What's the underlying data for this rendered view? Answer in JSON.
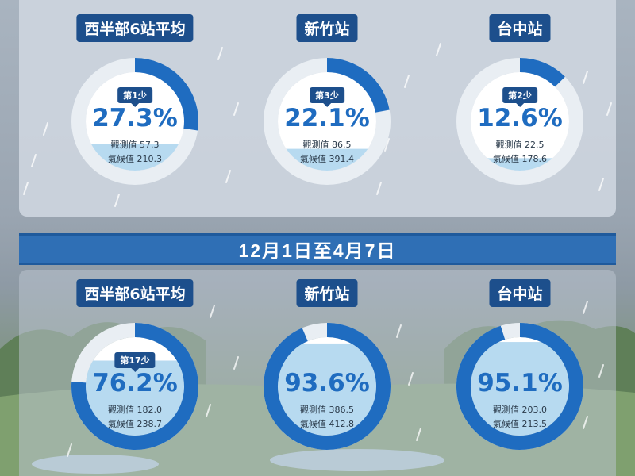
{
  "period_banner": "12月1日至4月7日",
  "chart_data": [
    {
      "type": "pie",
      "title": "西半部6站平均",
      "value_percent": 27.3,
      "rank": "第1少",
      "observed_label": "觀測值",
      "observed": 57.3,
      "climate_label": "氣候值",
      "climate": 210.3
    },
    {
      "type": "pie",
      "title": "新竹站",
      "value_percent": 22.1,
      "rank": "第3少",
      "observed_label": "觀測值",
      "observed": 86.5,
      "climate_label": "氣候值",
      "climate": 391.4
    },
    {
      "type": "pie",
      "title": "台中站",
      "value_percent": 12.6,
      "rank": "第2少",
      "observed_label": "觀測值",
      "observed": 22.5,
      "climate_label": "氣候值",
      "climate": 178.6
    },
    {
      "type": "pie",
      "title": "西半部6站平均",
      "value_percent": 76.2,
      "rank": "第17少",
      "observed_label": "觀測值",
      "observed": 182.0,
      "climate_label": "氣候值",
      "climate": 238.7
    },
    {
      "type": "pie",
      "title": "新竹站",
      "value_percent": 93.6,
      "rank": "",
      "observed_label": "觀測值",
      "observed": 386.5,
      "climate_label": "氣候值",
      "climate": 412.8
    },
    {
      "type": "pie",
      "title": "台中站",
      "value_percent": 95.1,
      "rank": "",
      "observed_label": "觀測值",
      "observed": 203.0,
      "climate_label": "氣候值",
      "climate": 213.5
    }
  ],
  "colors": {
    "fill": "#1f6cc0",
    "track": "#e9eef3",
    "water": "#b7daf0",
    "label_bg": "#1d4f8c",
    "banner": "#2f6fb5"
  }
}
